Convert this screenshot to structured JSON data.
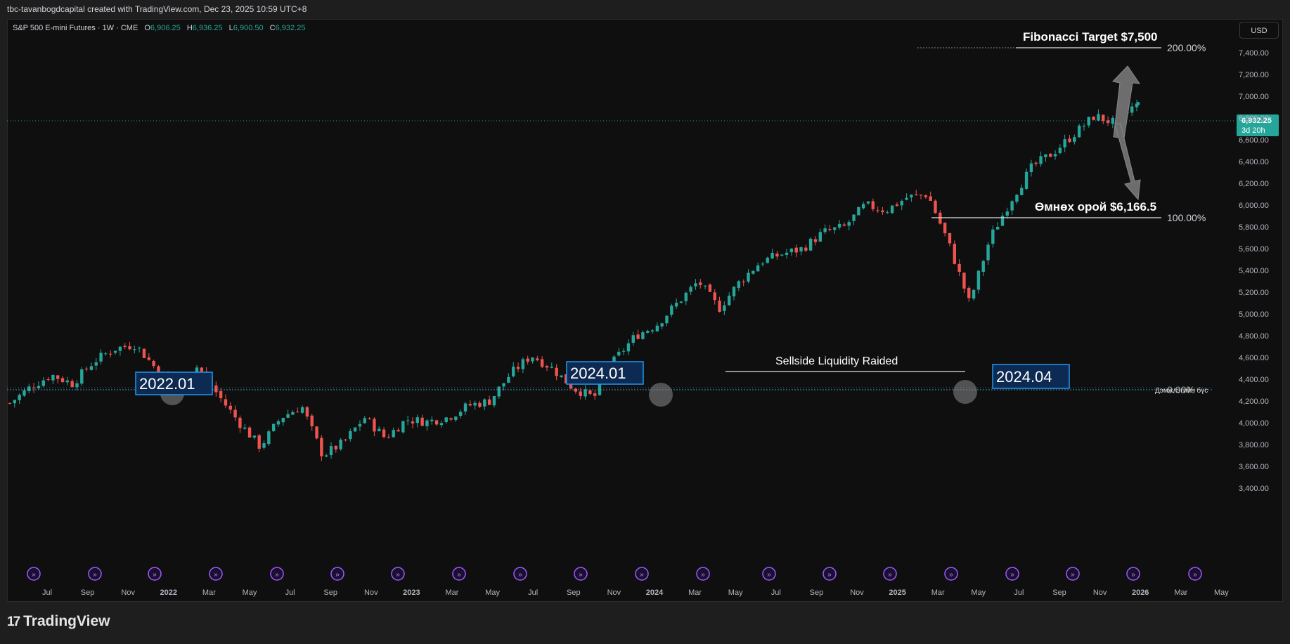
{
  "header": {
    "attribution": "tbc-tavanbogdcapital created with TradingView.com, Dec 23, 2025 10:59 UTC+8"
  },
  "legend": {
    "symbol": "S&P 500 E-mini Futures · 1W · CME",
    "open_label": "O",
    "open": "6,906.25",
    "high_label": "H",
    "high": "6,936.25",
    "low_label": "L",
    "low": "6,900.50",
    "close_label": "C",
    "close": "6,932.25"
  },
  "currency_button": "USD",
  "price_badge": {
    "price": "6,932.25",
    "countdown": "3d 20h"
  },
  "brand": {
    "logo": "17",
    "name": "TradingView"
  },
  "colors": {
    "up": "#26a69a",
    "down": "#ef5350",
    "background": "#0f0f0f",
    "box_fill": "#0d2a52",
    "box_border": "#2196f3"
  },
  "chart_data": {
    "type": "candlestick",
    "timeframe": "1W",
    "ylim": [
      3300,
      7600
    ],
    "y_ticks": [
      3400,
      3600,
      3800,
      4000,
      4200,
      4400,
      4600,
      4800,
      5000,
      5200,
      5400,
      5600,
      5800,
      6000,
      6200,
      6400,
      6600,
      6800,
      7000,
      7200,
      7400
    ],
    "y_tick_labels": [
      "3,400.00",
      "3,600.00",
      "3,800.00",
      "4,000.00",
      "4,200.00",
      "4,400.00",
      "4,600.00",
      "4,800.00",
      "5,000.00",
      "5,200.00",
      "5,400.00",
      "5,600.00",
      "5,800.00",
      "6,000.00",
      "6,200.00",
      "6,400.00",
      "6,600.00",
      "6,800.00",
      "7,000.00",
      "7,200.00",
      "7,400.00"
    ],
    "x_tick_labels": [
      "Jul",
      "Sep",
      "Nov",
      "2022",
      "Mar",
      "May",
      "Jul",
      "Sep",
      "Nov",
      "2023",
      "Mar",
      "May",
      "Jul",
      "Sep",
      "Nov",
      "2024",
      "Mar",
      "May",
      "Jul",
      "Sep",
      "Nov",
      "2025",
      "Mar",
      "May",
      "Jul",
      "Sep",
      "Nov",
      "2026",
      "Mar",
      "May"
    ],
    "x_tick_bold": [
      "2022",
      "2023",
      "2024",
      "2025",
      "2026"
    ],
    "price_path": [
      [
        "2021-06",
        4180
      ],
      [
        "2021-07",
        4330
      ],
      [
        "2021-08",
        4440
      ],
      [
        "2021-09",
        4360
      ],
      [
        "2021-10",
        4560
      ],
      [
        "2021-11",
        4680
      ],
      [
        "2021-12",
        4720
      ],
      [
        "2022-01",
        4500
      ],
      [
        "2022-02",
        4330
      ],
      [
        "2022-03",
        4520
      ],
      [
        "2022-04",
        4250
      ],
      [
        "2022-05",
        4000
      ],
      [
        "2022-06",
        3780
      ],
      [
        "2022-07",
        4050
      ],
      [
        "2022-08",
        4150
      ],
      [
        "2022-09",
        3700
      ],
      [
        "2022-10",
        3820
      ],
      [
        "2022-11",
        4050
      ],
      [
        "2022-12",
        3860
      ],
      [
        "2023-01",
        4030
      ],
      [
        "2023-02",
        4010
      ],
      [
        "2023-03",
        4050
      ],
      [
        "2023-04",
        4160
      ],
      [
        "2023-05",
        4200
      ],
      [
        "2023-06",
        4450
      ],
      [
        "2023-07",
        4620
      ],
      [
        "2023-08",
        4500
      ],
      [
        "2023-09",
        4320
      ],
      [
        "2023-10",
        4230
      ],
      [
        "2023-11",
        4580
      ],
      [
        "2023-12",
        4800
      ],
      [
        "2024-01",
        4900
      ],
      [
        "2024-02",
        5100
      ],
      [
        "2024-03",
        5300
      ],
      [
        "2024-04",
        5050
      ],
      [
        "2024-05",
        5300
      ],
      [
        "2024-06",
        5480
      ],
      [
        "2024-07",
        5550
      ],
      [
        "2024-08",
        5600
      ],
      [
        "2024-09",
        5750
      ],
      [
        "2024-10",
        5800
      ],
      [
        "2024-11",
        6000
      ],
      [
        "2024-12",
        5950
      ],
      [
        "2025-01",
        6070
      ],
      [
        "2025-02",
        6100
      ],
      [
        "2025-03",
        5650
      ],
      [
        "2025-04",
        5100
      ],
      [
        "2025-05",
        5700
      ],
      [
        "2025-06",
        6050
      ],
      [
        "2025-07",
        6350
      ],
      [
        "2025-08",
        6480
      ],
      [
        "2025-09",
        6650
      ],
      [
        "2025-10",
        6820
      ],
      [
        "2025-11",
        6750
      ],
      [
        "2025-12",
        6932
      ]
    ],
    "levels": [
      {
        "name": "fib-200",
        "price": 7500,
        "label": "200.00%"
      },
      {
        "name": "fib-100",
        "price": 6166.5,
        "label": "100.00%"
      },
      {
        "name": "fib-0",
        "price": 4830,
        "label": "0.00%"
      }
    ],
    "annotations": {
      "fib_target": "Fibonacci Target $7,500",
      "prev_high": "Өмнөх орой $6,166.5",
      "sellside": "Sellside Liquidity Raided",
      "support_label": "Дэмжлэгийн бүс",
      "box_2022": "2022.01",
      "box_2024a": "2024.01",
      "box_2024b": "2024.04"
    },
    "last_price": 6932.25
  }
}
